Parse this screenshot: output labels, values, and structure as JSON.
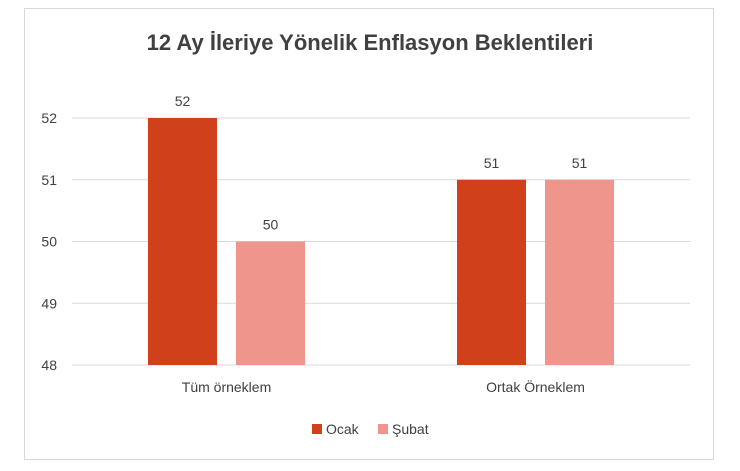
{
  "chart_data": {
    "type": "bar",
    "title": "12 Ay İleriye Yönelik Enflasyon Beklentileri",
    "categories": [
      "Tüm örneklem",
      "Ortak Örneklem"
    ],
    "series": [
      {
        "name": "Ocak",
        "values": [
          52,
          51
        ],
        "color": "#d0401b"
      },
      {
        "name": "Şubat",
        "values": [
          50,
          51
        ],
        "color": "#ef958b"
      }
    ],
    "ylim": [
      48,
      52
    ],
    "yticks": [
      "48",
      "49",
      "50",
      "51",
      "52"
    ],
    "grid": true,
    "legend": "bottom"
  }
}
